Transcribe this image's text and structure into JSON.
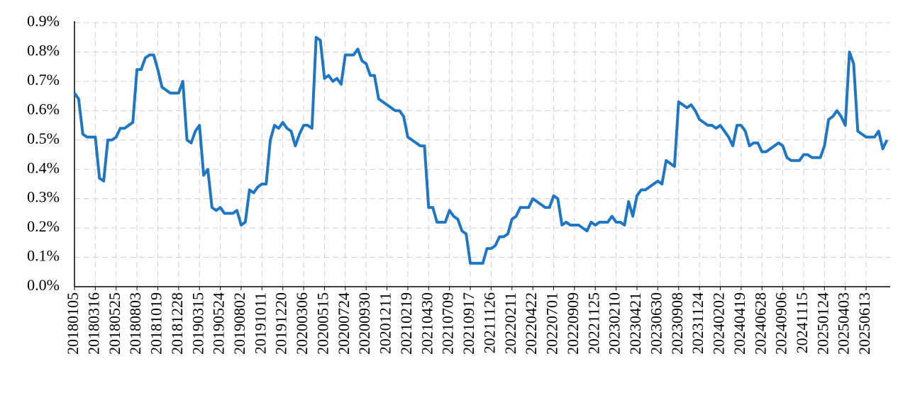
{
  "chart_data": {
    "type": "line",
    "categories": [
      "20180105",
      null,
      null,
      null,
      null,
      "20180316",
      null,
      null,
      null,
      null,
      "20180525",
      null,
      null,
      null,
      null,
      "20180803",
      null,
      null,
      null,
      null,
      "20181019",
      null,
      null,
      null,
      null,
      "20181228",
      null,
      null,
      null,
      null,
      "20190315",
      null,
      null,
      null,
      null,
      "20190524",
      null,
      null,
      null,
      null,
      "20190802",
      null,
      null,
      null,
      null,
      "20191011",
      null,
      null,
      null,
      null,
      "20191220",
      null,
      null,
      null,
      null,
      "20200306",
      null,
      null,
      null,
      null,
      "20200515",
      null,
      null,
      null,
      null,
      "20200724",
      null,
      null,
      null,
      null,
      "20200930",
      null,
      null,
      null,
      null,
      "20201211",
      null,
      null,
      null,
      null,
      "20210219",
      null,
      null,
      null,
      null,
      "20210430",
      null,
      null,
      null,
      null,
      "20210709",
      null,
      null,
      null,
      null,
      "20210917",
      null,
      null,
      null,
      null,
      "20211126",
      null,
      null,
      null,
      null,
      "20220211",
      null,
      null,
      null,
      null,
      "20220422",
      null,
      null,
      null,
      null,
      "20220701",
      null,
      null,
      null,
      null,
      "20220909",
      null,
      null,
      null,
      null,
      "20221125",
      null,
      null,
      null,
      null,
      "20230210",
      null,
      null,
      null,
      null,
      "20230421",
      null,
      null,
      null,
      null,
      "20230630",
      null,
      null,
      null,
      null,
      "20230908",
      null,
      null,
      null,
      null,
      "20231124",
      null,
      null,
      null,
      null,
      "20240202",
      null,
      null,
      null,
      null,
      "20240419",
      null,
      null,
      null,
      null,
      "20240628",
      null,
      null,
      null,
      null,
      "20240906",
      null,
      null,
      null,
      null,
      "20241115",
      null,
      null,
      null,
      null,
      "20250124",
      null,
      null,
      null,
      null,
      "20250403",
      null,
      null,
      null,
      null,
      "20250613",
      null,
      null,
      null,
      null,
      null
    ],
    "series": [
      {
        "color": "#1f77c4",
        "values": [
          0.66,
          0.64,
          0.52,
          0.51,
          0.51,
          0.51,
          0.37,
          0.36,
          0.5,
          0.5,
          0.51,
          0.54,
          0.54,
          0.55,
          0.56,
          0.74,
          0.74,
          0.78,
          0.79,
          0.79,
          0.74,
          0.68,
          0.67,
          0.66,
          0.66,
          0.66,
          0.7,
          0.5,
          0.49,
          0.53,
          0.55,
          0.38,
          0.4,
          0.27,
          0.26,
          0.27,
          0.25,
          0.25,
          0.25,
          0.26,
          0.21,
          0.22,
          0.33,
          0.32,
          0.34,
          0.35,
          0.35,
          0.5,
          0.55,
          0.54,
          0.56,
          0.54,
          0.53,
          0.48,
          0.52,
          0.55,
          0.55,
          0.54,
          0.85,
          0.84,
          0.71,
          0.72,
          0.7,
          0.71,
          0.69,
          0.79,
          0.79,
          0.79,
          0.81,
          0.77,
          0.76,
          0.72,
          0.72,
          0.64,
          0.63,
          0.62,
          0.61,
          0.6,
          0.6,
          0.58,
          0.51,
          0.5,
          0.49,
          0.48,
          0.48,
          0.27,
          0.27,
          0.22,
          0.22,
          0.22,
          0.26,
          0.24,
          0.23,
          0.19,
          0.18,
          0.08,
          0.08,
          0.08,
          0.08,
          0.13,
          0.13,
          0.14,
          0.17,
          0.17,
          0.18,
          0.23,
          0.24,
          0.27,
          0.27,
          0.27,
          0.3,
          0.29,
          0.28,
          0.27,
          0.27,
          0.31,
          0.3,
          0.21,
          0.22,
          0.21,
          0.21,
          0.21,
          0.2,
          0.19,
          0.22,
          0.21,
          0.22,
          0.22,
          0.22,
          0.24,
          0.22,
          0.22,
          0.21,
          0.29,
          0.24,
          0.31,
          0.33,
          0.33,
          0.34,
          0.35,
          0.36,
          0.35,
          0.43,
          0.42,
          0.41,
          0.63,
          0.62,
          0.61,
          0.62,
          0.6,
          0.57,
          0.56,
          0.55,
          0.55,
          0.54,
          0.55,
          0.53,
          0.51,
          0.48,
          0.55,
          0.55,
          0.53,
          0.48,
          0.49,
          0.49,
          0.46,
          0.46,
          0.47,
          0.48,
          0.49,
          0.48,
          0.44,
          0.43,
          0.43,
          0.43,
          0.45,
          0.45,
          0.44,
          0.44,
          0.44,
          0.48,
          0.57,
          0.58,
          0.6,
          0.58,
          0.55,
          0.8,
          0.76,
          0.53,
          0.52,
          0.51,
          0.51,
          0.51,
          0.53,
          0.47,
          0.5
        ]
      }
    ],
    "ylim": [
      0,
      0.9
    ],
    "yticks": [
      {
        "value": 0,
        "label": "0.0%"
      },
      {
        "value": 0.1,
        "label": "0.1%"
      },
      {
        "value": 0.2,
        "label": "0.2%"
      },
      {
        "value": 0.3,
        "label": "0.3%"
      },
      {
        "value": 0.4,
        "label": "0.4%"
      },
      {
        "value": 0.5,
        "label": "0.5%"
      },
      {
        "value": 0.6,
        "label": "0.6%"
      },
      {
        "value": 0.7,
        "label": "0.7%"
      },
      {
        "value": 0.8,
        "label": "0.8%"
      },
      {
        "value": 0.9,
        "label": "0.9%"
      }
    ],
    "grid": true
  }
}
